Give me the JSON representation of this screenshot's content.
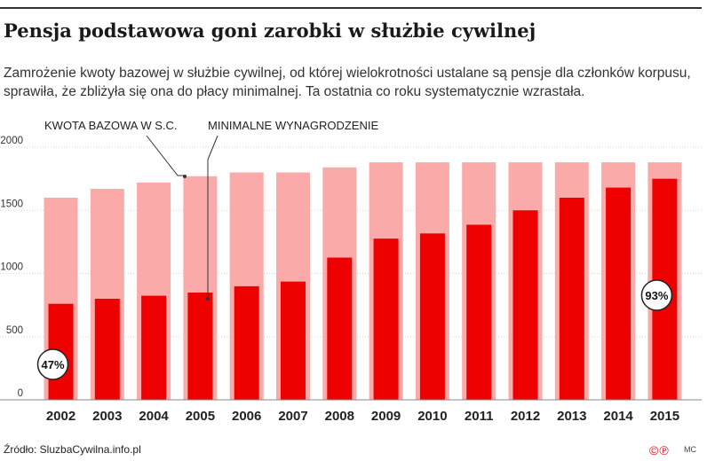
{
  "header": {
    "title": "Pensja podstawowa goni zarobki w służbie cywilnej",
    "subtitle": "Zamrożenie kwoty bazowej w służbie cywilnej, od której wielokrotności ustalane są pensje dla członków korpusu, sprawiła, że zbliżyła się ona do płacy minimalnej. Ta ostatnia co roku systematycznie wzrastała."
  },
  "chart_data": {
    "type": "bar",
    "categories": [
      "2002",
      "2003",
      "2004",
      "2005",
      "2006",
      "2007",
      "2008",
      "2009",
      "2010",
      "2011",
      "2012",
      "2013",
      "2014",
      "2015"
    ],
    "series": [
      {
        "name": "KWOTA BAZOWA W S.C.",
        "color": "#fbaaaa",
        "values": [
          1600,
          1670,
          1720,
          1770,
          1800,
          1800,
          1840,
          1880,
          1880,
          1880,
          1880,
          1880,
          1880,
          1880
        ]
      },
      {
        "name": "MINIMALNE WYNAGRODZENIE",
        "color": "#ee0000",
        "values": [
          760,
          800,
          824,
          849,
          899,
          936,
          1126,
          1276,
          1317,
          1386,
          1500,
          1600,
          1680,
          1750
        ]
      }
    ],
    "yticks": [
      0,
      500,
      1000,
      1500,
      2000
    ],
    "ylim": [
      0,
      2000
    ],
    "grid": true,
    "annotations": [
      {
        "category": "2002",
        "text": "47%"
      },
      {
        "category": "2015",
        "text": "93%"
      }
    ]
  },
  "footer": {
    "source": "Źródło: SluzbaCywilna.info.pl",
    "logo": "©℗",
    "author": "MC"
  }
}
